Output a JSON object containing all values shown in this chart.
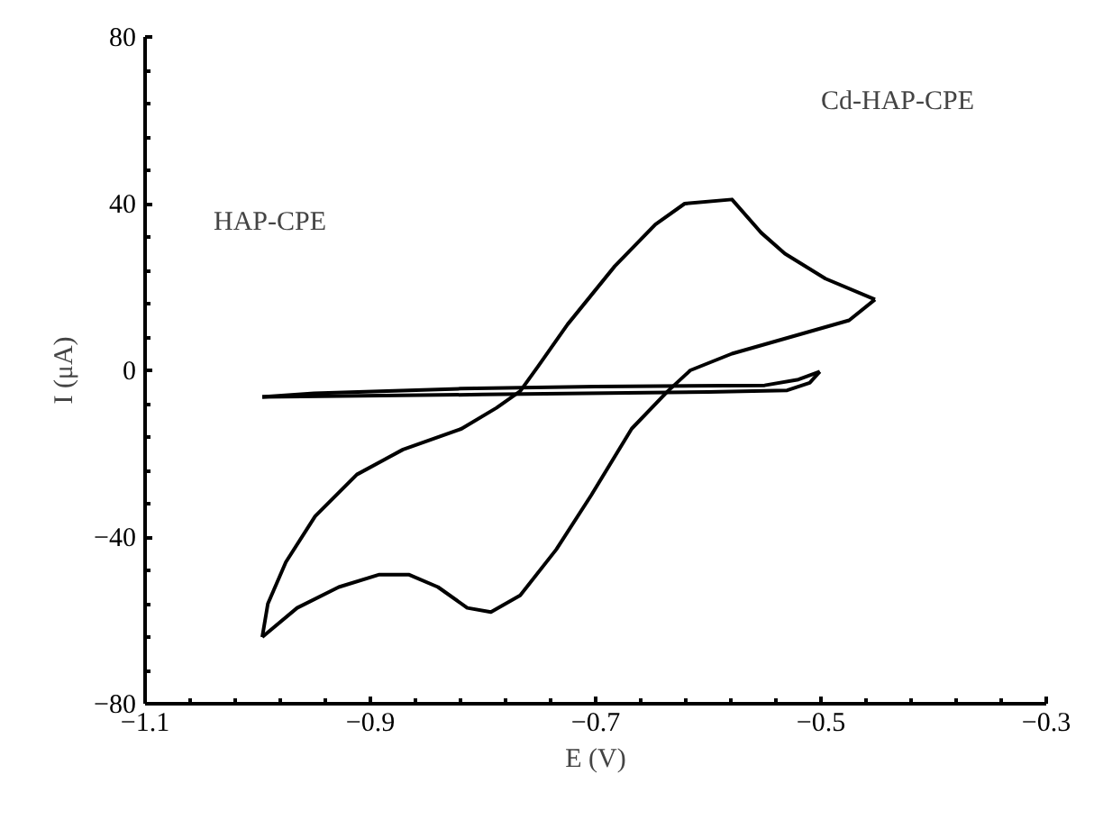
{
  "chart_data": {
    "type": "line",
    "xlabel": "E (V)",
    "ylabel": "I (μA)",
    "xlim": [
      -1.1,
      -0.3
    ],
    "xticks": [
      -1.1,
      -0.9,
      -0.7,
      -0.5,
      -0.3
    ],
    "ylim": [
      -80,
      80
    ],
    "yticks": [
      -80,
      -40,
      0,
      40,
      80
    ],
    "grid": false,
    "marker": "none",
    "line_style": "solid",
    "annotations": [
      "Cd-HAP-CPE",
      "HAP-CPE"
    ],
    "series": [
      {
        "color": "#000000",
        "x": [
          -0.996,
          -0.991,
          -0.975,
          -0.949,
          -0.912,
          -0.871,
          -0.819,
          -0.788,
          -0.767,
          -0.751,
          -0.725,
          -0.683,
          -0.647,
          -0.621,
          -0.579,
          -0.553,
          -0.532,
          -0.496,
          -0.452
        ],
        "values": [
          -64,
          -56,
          -46,
          -35,
          -25,
          -19,
          -14,
          -9,
          -5,
          1,
          11,
          25,
          35,
          40,
          41,
          33,
          28,
          22,
          17
        ]
      },
      {
        "color": "#000000",
        "x": [
          -0.996,
          -0.965,
          -0.928,
          -0.892,
          -0.866,
          -0.84,
          -0.814,
          -0.793,
          -0.767,
          -0.735,
          -0.704,
          -0.668,
          -0.636,
          -0.616,
          -0.579,
          -0.527,
          -0.475,
          -0.452
        ],
        "values": [
          -64,
          -57,
          -52,
          -49,
          -49,
          -52,
          -57,
          -58,
          -54,
          -43,
          -30,
          -14,
          -5,
          0,
          4,
          8,
          12,
          17
        ]
      },
      {
        "color": "#000000",
        "x": [
          -0.996,
          -0.8,
          -0.6,
          -0.53,
          -0.51,
          -0.501
        ],
        "values": [
          -6.4,
          -5.8,
          -5.2,
          -4.8,
          -3,
          -0.3
        ]
      },
      {
        "color": "#000000",
        "x": [
          -0.996,
          -0.95,
          -0.82,
          -0.7,
          -0.55,
          -0.52,
          -0.501
        ],
        "values": [
          -6.4,
          -5.5,
          -4.4,
          -3.9,
          -3.6,
          -2.2,
          -0.3
        ]
      }
    ]
  }
}
